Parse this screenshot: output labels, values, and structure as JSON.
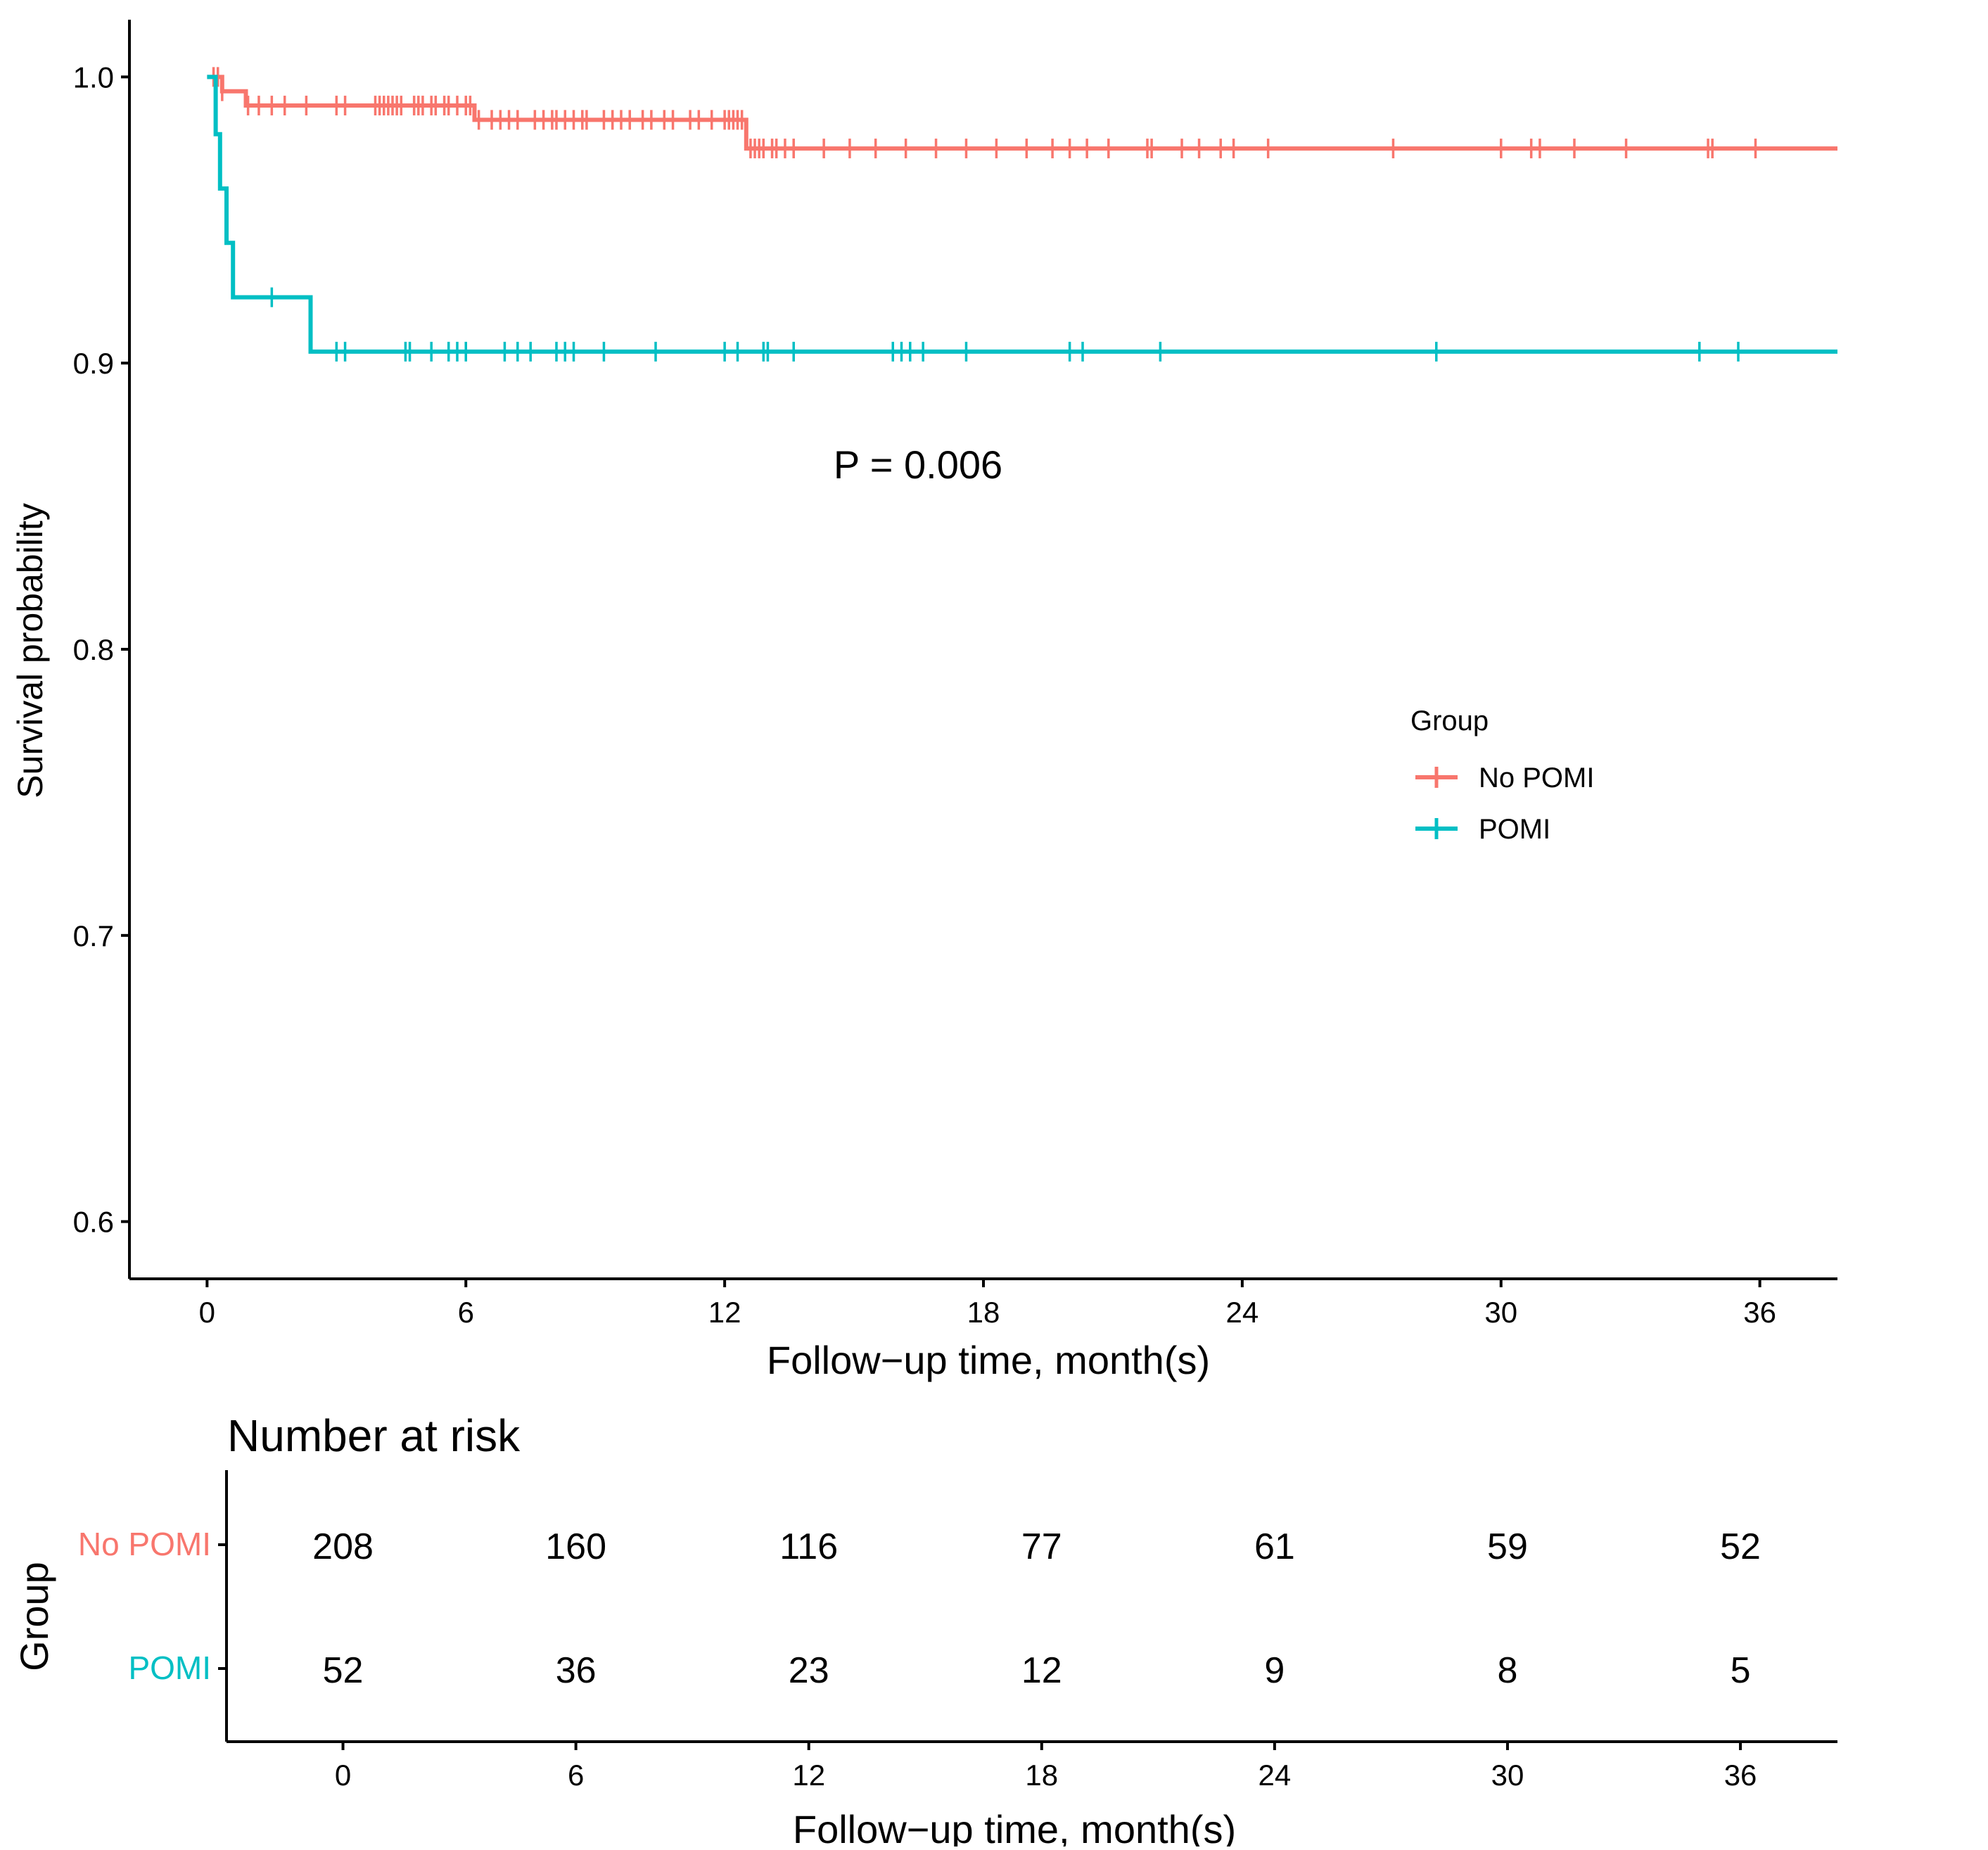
{
  "chart_data": [
    {
      "type": "line",
      "subtype": "kaplan-meier",
      "xlabel": "Follow−up time, month(s)",
      "ylabel": "Survival probability",
      "xlim": [
        -1.8,
        37.8
      ],
      "ylim": [
        0.58,
        1.02
      ],
      "xticks": [
        0,
        6,
        12,
        18,
        24,
        30,
        36
      ],
      "yticks": [
        0.6,
        0.7,
        0.8,
        0.9,
        1.0
      ],
      "ytick_labels": [
        "0.6",
        "0.7",
        "0.8",
        "0.9",
        "1.0"
      ],
      "annotation": "P = 0.006",
      "legend": {
        "title": "Group",
        "position": "right",
        "entries": [
          "No POMI",
          "POMI"
        ]
      },
      "series": [
        {
          "name": "No POMI",
          "color": "#F8766D",
          "steps": [
            [
              0,
              1.0
            ],
            [
              0.35,
              0.995
            ],
            [
              0.9,
              0.99
            ],
            [
              6.2,
              0.985
            ],
            [
              12.5,
              0.975
            ],
            [
              37.8,
              0.975
            ]
          ],
          "censor_times": [
            0.15,
            0.25,
            0.35,
            0.95,
            1.2,
            1.5,
            1.8,
            2.3,
            3.0,
            3.2,
            3.9,
            4.0,
            4.1,
            4.2,
            4.3,
            4.4,
            4.5,
            4.8,
            4.9,
            5.0,
            5.2,
            5.3,
            5.5,
            5.6,
            5.8,
            6.0,
            6.1,
            6.3,
            6.6,
            6.8,
            7.0,
            7.2,
            7.6,
            7.8,
            8.0,
            8.1,
            8.3,
            8.5,
            8.7,
            8.8,
            9.2,
            9.4,
            9.6,
            9.8,
            10.1,
            10.3,
            10.6,
            10.8,
            11.2,
            11.4,
            11.7,
            12.0,
            12.1,
            12.2,
            12.3,
            12.4,
            12.6,
            12.7,
            12.8,
            12.9,
            13.1,
            13.2,
            13.4,
            13.6,
            14.3,
            14.9,
            15.5,
            16.2,
            16.9,
            17.6,
            18.3,
            19.0,
            19.6,
            20.0,
            20.4,
            20.9,
            21.8,
            21.9,
            22.6,
            23.0,
            23.5,
            23.8,
            24.6,
            27.5,
            30.0,
            30.7,
            30.9,
            31.7,
            32.9,
            34.8,
            34.9,
            35.9
          ]
        },
        {
          "name": "POMI",
          "color": "#00BFC4",
          "steps": [
            [
              0,
              1.0
            ],
            [
              0.2,
              0.98
            ],
            [
              0.3,
              0.961
            ],
            [
              0.45,
              0.942
            ],
            [
              0.6,
              0.923
            ],
            [
              2.4,
              0.904
            ],
            [
              37.8,
              0.904
            ]
          ],
          "censor_times": [
            1.5,
            3.0,
            3.2,
            4.6,
            4.7,
            5.2,
            5.6,
            5.8,
            6.0,
            6.9,
            7.2,
            7.5,
            8.1,
            8.3,
            8.5,
            9.2,
            10.4,
            12.0,
            12.3,
            12.9,
            13.0,
            13.6,
            15.9,
            16.1,
            16.3,
            16.6,
            17.6,
            20.0,
            20.3,
            22.1,
            28.5,
            34.6,
            35.5
          ]
        }
      ]
    },
    {
      "type": "table",
      "title": "Number at risk",
      "ylabel": "Group",
      "xlabel": "Follow−up time, month(s)",
      "x": [
        0,
        6,
        12,
        18,
        24,
        30,
        36
      ],
      "rows": [
        {
          "name": "No POMI",
          "color": "#F8766D",
          "values": [
            "208",
            "160",
            "116",
            "77",
            "61",
            "59",
            "52"
          ]
        },
        {
          "name": "POMI",
          "color": "#00BFC4",
          "values": [
            "52",
            "36",
            "23",
            "12",
            "9",
            "8",
            "5"
          ]
        }
      ]
    }
  ]
}
